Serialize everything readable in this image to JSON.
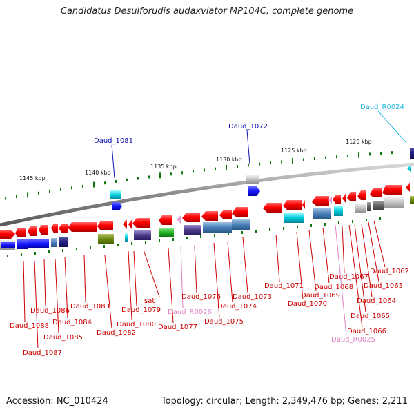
{
  "title": "Candidatus Desulforudis audaxviator MP104C, complete genome",
  "footer": {
    "accession": "Accession: NC_010424",
    "topology": "Topology: circular; Length: 2,349,476 bp; Genes: 2,211"
  },
  "scale_labels": [
    "1145 kbp",
    "1140 kbp",
    "1135 kbp",
    "1130 kbp",
    "1125 kbp",
    "1120 kbp"
  ],
  "top_labels": [
    {
      "text": "Daud_1081",
      "color": "#1010b0"
    },
    {
      "text": "Daud_1072",
      "color": "#1010b0"
    },
    {
      "text": "Daud_R0024",
      "color": "#22b8e0"
    }
  ],
  "bottom_labels": [
    {
      "text": "Daud_1088",
      "color": "#cc0000"
    },
    {
      "text": "Daud_1087",
      "color": "#cc0000"
    },
    {
      "text": "Daud_1086",
      "color": "#cc0000"
    },
    {
      "text": "Daud_1085",
      "color": "#cc0000"
    },
    {
      "text": "Daud_1084",
      "color": "#cc0000"
    },
    {
      "text": "Daud_1083",
      "color": "#cc0000"
    },
    {
      "text": "Daud_1082",
      "color": "#cc0000"
    },
    {
      "text": "Daud_1080",
      "color": "#cc0000"
    },
    {
      "text": "Daud_1079",
      "color": "#cc0000"
    },
    {
      "text": "sat",
      "color": "#cc0000"
    },
    {
      "text": "Daud_1077",
      "color": "#cc0000"
    },
    {
      "text": "Daud_R0026",
      "color": "#e080c0"
    },
    {
      "text": "Daud_1076",
      "color": "#cc0000"
    },
    {
      "text": "Daud_1075",
      "color": "#cc0000"
    },
    {
      "text": "Daud_1074",
      "color": "#cc0000"
    },
    {
      "text": "Daud_1073",
      "color": "#cc0000"
    },
    {
      "text": "Daud_1071",
      "color": "#cc0000"
    },
    {
      "text": "Daud_1070",
      "color": "#cc0000"
    },
    {
      "text": "Daud_1069",
      "color": "#cc0000"
    },
    {
      "text": "Daud_1068",
      "color": "#cc0000"
    },
    {
      "text": "Daud_1067",
      "color": "#cc0000"
    },
    {
      "text": "Daud_1066",
      "color": "#cc0000"
    },
    {
      "text": "Daud_R0025",
      "color": "#e080c0"
    },
    {
      "text": "Daud_1065",
      "color": "#cc0000"
    },
    {
      "text": "Daud_1064",
      "color": "#cc0000"
    },
    {
      "text": "Daud_1063",
      "color": "#cc0000"
    },
    {
      "text": "Daud_1062",
      "color": "#cc0000"
    }
  ],
  "colors": {
    "gene_forward": "#ee1111",
    "backbone": "#999999",
    "tick": "#117711",
    "rna": "#e8a0d8"
  }
}
